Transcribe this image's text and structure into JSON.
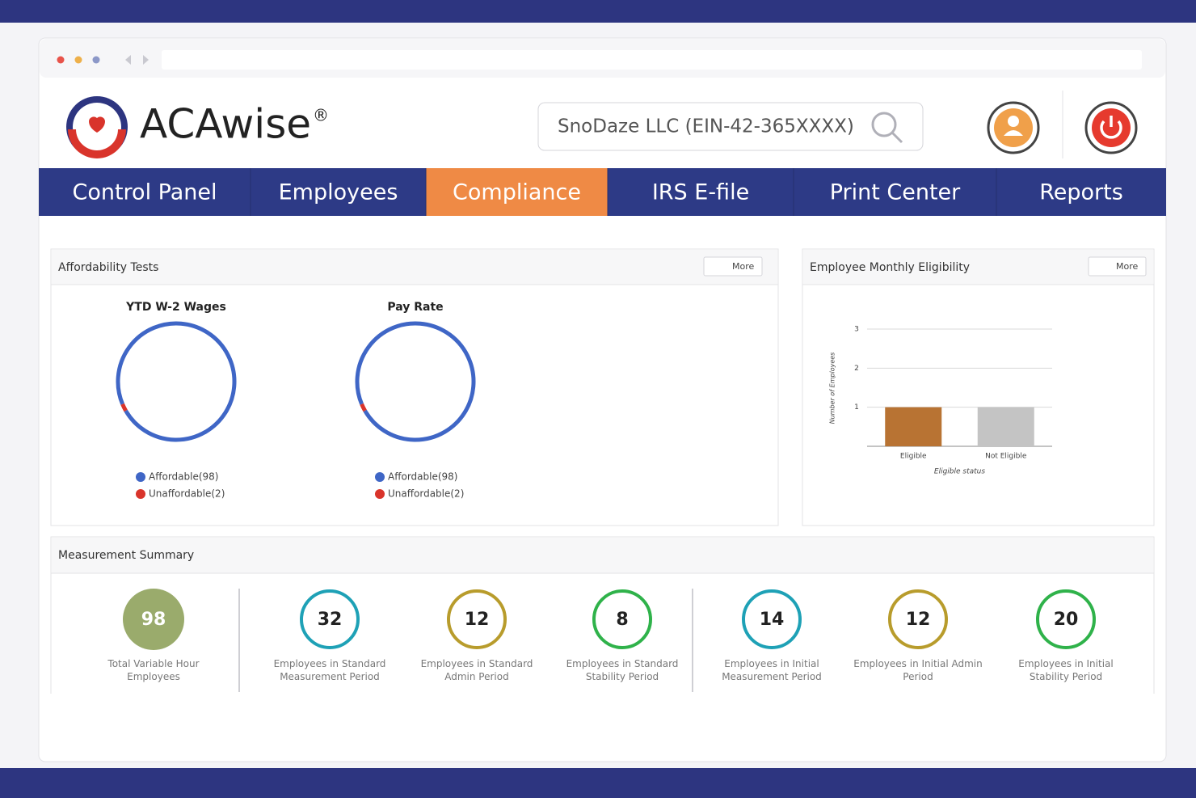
{
  "header": {
    "brand": "ACAwise",
    "trademark": "®",
    "search": "SnoDaze LLC (EIN-42-365XXXX)"
  },
  "nav": {
    "items": [
      "Control Panel",
      "Employees",
      "Compliance",
      "IRS E-file",
      "Print Center",
      "Reports"
    ],
    "active": 2
  },
  "affordability_tests": {
    "title": "Affordability Tests",
    "more": "More",
    "charts": [
      {
        "type": "donut",
        "title": "YTD W-2 Wages",
        "categories": [
          "Affordable(98)",
          "Unaffordable(2)"
        ],
        "values": [
          98,
          2
        ],
        "colors": [
          "#3f66c6",
          "#d9342b"
        ]
      },
      {
        "type": "donut",
        "title": "Pay Rate",
        "categories": [
          "Affordable(98)",
          "Unaffordable(2)"
        ],
        "values": [
          98,
          2
        ],
        "colors": [
          "#3f66c6",
          "#d9342b"
        ]
      }
    ]
  },
  "employee_monthly_eligibility": {
    "title": "Employee Monthly Eligibility",
    "more": "More",
    "chart_data": {
      "type": "bar",
      "categories": [
        "Eligible",
        "Not Eligible"
      ],
      "values": [
        1,
        1
      ],
      "colors": [
        "#b87333",
        "#c4c4c4"
      ],
      "ylim": [
        0,
        3
      ],
      "yticks": [
        1,
        2,
        3
      ],
      "grid": true,
      "xlabel": "Eligible status",
      "ylabel": "Number of Employees"
    }
  },
  "measurement_summary": {
    "title": "Measurement Summary",
    "items": [
      {
        "value": 98,
        "label": "Total Variable Hour Employees",
        "color": "#9aab6c",
        "filled": true
      },
      {
        "value": 32,
        "label": "Employees in Standard Measurement Period",
        "color": "#1ea1b6",
        "filled": false
      },
      {
        "value": 12,
        "label": "Employees in Standard Admin Period",
        "color": "#b89c2c",
        "filled": false
      },
      {
        "value": 8,
        "label": "Employees in Standard Stability Period",
        "color": "#2fb24a",
        "filled": false
      },
      {
        "value": 14,
        "label": "Employees in Initial Measurement Period",
        "color": "#1ea1b6",
        "filled": false
      },
      {
        "value": 12,
        "label": "Employees in Initial Admin Period",
        "color": "#b89c2c",
        "filled": false
      },
      {
        "value": 20,
        "label": "Employees in Initial Stability Period",
        "color": "#2fb24a",
        "filled": false
      }
    ]
  }
}
